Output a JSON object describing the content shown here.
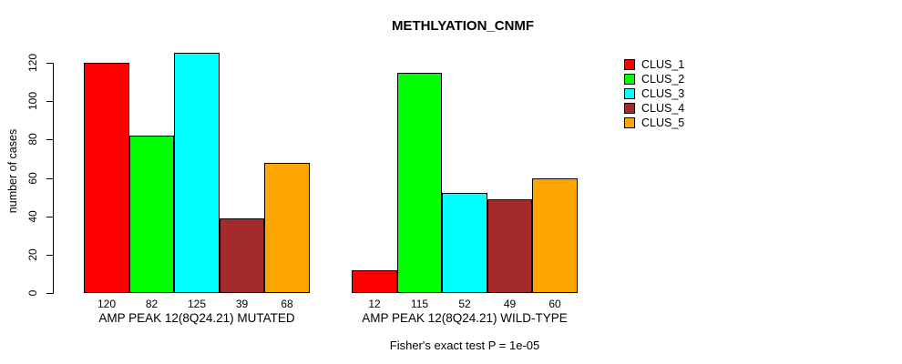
{
  "title": "METHLYATION_CNMF",
  "y_axis": {
    "label": "number of cases",
    "ticks": [
      0,
      20,
      40,
      60,
      80,
      100,
      120
    ]
  },
  "legend": {
    "position": "right",
    "items": [
      {
        "label": "CLUS_1",
        "color": "#FF0000"
      },
      {
        "label": "CLUS_2",
        "color": "#00FF00"
      },
      {
        "label": "CLUS_3",
        "color": "#00FFFF"
      },
      {
        "label": "CLUS_4",
        "color": "#A52A2A"
      },
      {
        "label": "CLUS_5",
        "color": "#FFA500"
      }
    ]
  },
  "footer": "Fisher's exact test P = 1e-05",
  "chart_data": {
    "type": "bar",
    "title": "METHLYATION_CNMF",
    "xlabel": "",
    "ylabel": "number of cases",
    "ylim": [
      0,
      125
    ],
    "yticks": [
      0,
      20,
      40,
      60,
      80,
      100,
      120
    ],
    "grid": false,
    "legend_position": "right",
    "series_names": [
      "CLUS_1",
      "CLUS_2",
      "CLUS_3",
      "CLUS_4",
      "CLUS_5"
    ],
    "series_colors": [
      "#FF0000",
      "#00FF00",
      "#00FFFF",
      "#A52A2A",
      "#FFA500"
    ],
    "groups": [
      {
        "label": "AMP PEAK 12(8Q24.21) MUTATED",
        "values": [
          120,
          82,
          125,
          39,
          68
        ]
      },
      {
        "label": "AMP PEAK 12(8Q24.21) WILD-TYPE",
        "values": [
          12,
          115,
          52,
          49,
          60
        ]
      }
    ],
    "bar_value_labels_shown": true,
    "annotation": "Fisher's exact test P = 1e-05"
  }
}
